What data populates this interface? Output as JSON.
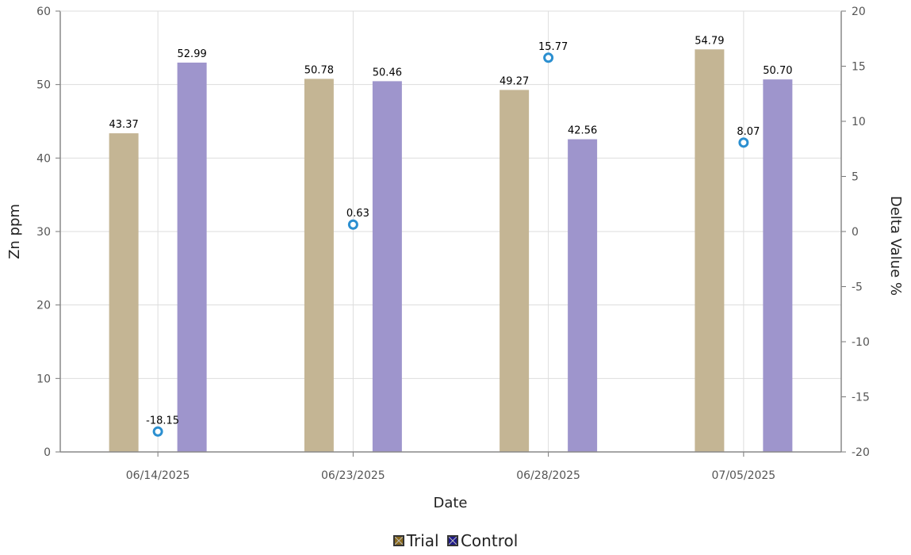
{
  "chart_data": {
    "type": "bar",
    "categories": [
      "06/14/2025",
      "06/23/2025",
      "06/28/2025",
      "07/05/2025"
    ],
    "series": [
      {
        "name": "Trial",
        "kind": "bar",
        "axis": "left",
        "values": [
          43.37,
          50.78,
          49.27,
          54.79
        ],
        "labels": [
          "43.37",
          "50.78",
          "49.27",
          "54.79"
        ],
        "color": "#c4b594",
        "legend_color": "#8a6a1e"
      },
      {
        "name": "Control",
        "kind": "bar",
        "axis": "left",
        "values": [
          52.99,
          50.46,
          42.56,
          50.7
        ],
        "labels": [
          "52.99",
          "50.46",
          "42.56",
          "50.70"
        ],
        "color": "#9e95cc",
        "legend_color": "#1f1a8c"
      },
      {
        "kind": "point",
        "axis": "right",
        "values": [
          -18.15,
          0.63,
          15.77,
          8.07
        ],
        "labels": [
          "-18.15",
          "0.63",
          "15.77",
          "8.07"
        ],
        "color": "#2b8fd0"
      }
    ],
    "xlabel": "Date",
    "ylabel": "Zn ppm",
    "y2label": "Delta Value %",
    "ylim": [
      0,
      60
    ],
    "y2lim": [
      -20,
      20
    ],
    "yticks": [
      "0",
      "10",
      "20",
      "30",
      "40",
      "50",
      "60"
    ],
    "y2ticks": [
      "-20",
      "-15",
      "-10",
      "-5",
      "0",
      "5",
      "10",
      "15",
      "20"
    ],
    "grid": true,
    "legend_position": "bottom-center"
  }
}
